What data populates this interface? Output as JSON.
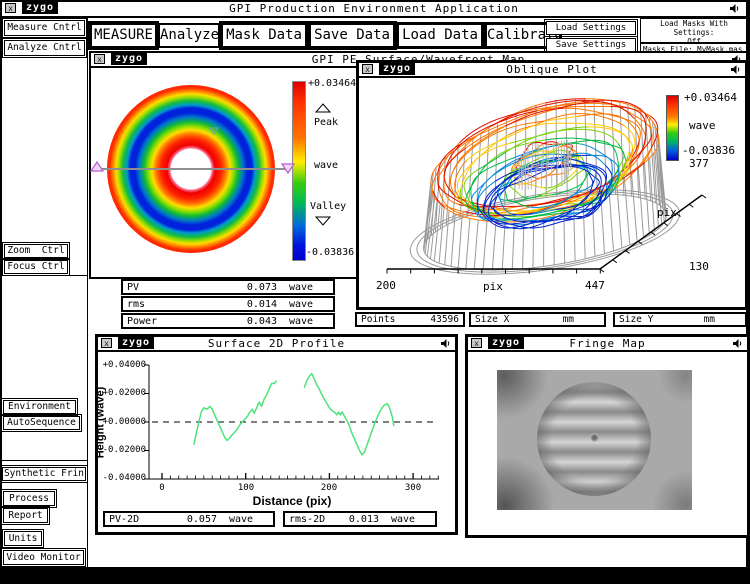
{
  "app": {
    "title": "GPI Production Environment Application",
    "logo": "zygo"
  },
  "sidebar": {
    "items": [
      {
        "label": "Measure Cntrl"
      },
      {
        "label": "Analyze Cntrl"
      },
      {
        "label": "Zoom  Ctrl"
      },
      {
        "label": "Focus Ctrl"
      },
      {
        "label": "Environment"
      },
      {
        "label": "AutoSequence"
      },
      {
        "label": "Synthetic Frin"
      },
      {
        "label": "Process"
      },
      {
        "label": "Report"
      },
      {
        "label": "Units"
      },
      {
        "label": "Video Monitor"
      }
    ]
  },
  "toolbar": {
    "buttons": [
      {
        "label": "MEASURE"
      },
      {
        "label": "Analyze"
      },
      {
        "label": "Mask Data"
      },
      {
        "label": "Save Data"
      },
      {
        "label": "Load Data"
      },
      {
        "label": "Calibrate"
      }
    ],
    "load_settings": "Load Settings",
    "save_settings": "Save Settings",
    "masks_line1": "Load Masks With Settings:",
    "masks_line2": "Off",
    "masks_file": "Masks File: MyMask.mas"
  },
  "surface_map": {
    "title": "GPI PE Surface/Wavefront Map",
    "colorbar": {
      "max": "+0.03464",
      "peak": "Peak",
      "unit": "wave",
      "valley": "Valley",
      "min": "-0.03836"
    },
    "results": [
      {
        "label": "PV",
        "value": "0.073",
        "unit": "wave"
      },
      {
        "label": "rms",
        "value": "0.014",
        "unit": "wave"
      },
      {
        "label": "Power",
        "value": "0.043",
        "unit": "wave"
      }
    ]
  },
  "oblique": {
    "title": "Oblique Plot",
    "colorbar": {
      "max": "+0.03464",
      "unit": "wave",
      "min": "-0.03836",
      "below": "377"
    },
    "x_axis": {
      "min": "200",
      "label": "pix",
      "max": "447"
    },
    "y_axis": {
      "label": "pix",
      "front": "130"
    },
    "info": [
      {
        "label": "Points",
        "value": "43596",
        "unit": ""
      },
      {
        "label": "Size X",
        "value": "",
        "unit": "mm"
      },
      {
        "label": "Size Y",
        "value": "",
        "unit": "mm"
      }
    ]
  },
  "profile": {
    "title": "Surface 2D Profile",
    "ylabel": "Height (wave)",
    "xlabel": "Distance (pix)",
    "yticks": [
      "+0.04000",
      "+0.02000",
      "+0.00000",
      "-0.02000",
      "-0.04000"
    ],
    "xticks": [
      "0",
      "100",
      "200",
      "300"
    ],
    "results": [
      {
        "label": "PV-2D",
        "value": "0.057",
        "unit": "wave"
      },
      {
        "label": "rms-2D",
        "value": "0.013",
        "unit": "wave"
      }
    ]
  },
  "fringe": {
    "title": "Fringe Map"
  },
  "chart_data": [
    {
      "type": "heatmap",
      "name": "surface_wavefront_map",
      "title": "GPI PE Surface/Wavefront Map",
      "units": "wave",
      "scale_max": 0.03464,
      "scale_min": -0.03836,
      "pv": 0.073,
      "rms": 0.014,
      "power": 0.043,
      "shape": "annulus with central hole, concentric height rings",
      "rings_center_to_edge": [
        "white-hole",
        "red",
        "orange",
        "yellow",
        "green",
        "blue",
        "green",
        "yellow",
        "orange",
        "red"
      ],
      "profile_line": {
        "orientation": "horizontal",
        "handle_color": "#b05fd0"
      }
    },
    {
      "type": "surface",
      "name": "oblique_plot",
      "title": "Oblique Plot",
      "x_range": [
        200,
        447
      ],
      "x_unit": "pix",
      "y_range": [
        130,
        377
      ],
      "y_unit": "pix",
      "z_range": [
        -0.03836,
        0.03464
      ],
      "z_unit": "wave",
      "points": 43596,
      "hole_radius_frac": 0.22,
      "radial_profile": {
        "t": [
          0,
          0.1,
          0.22,
          0.35,
          0.45,
          0.58,
          0.72,
          0.85,
          1.0
        ],
        "z": [
          0.032,
          0.012,
          -0.012,
          -0.03,
          -0.022,
          -0.004,
          0.016,
          0.028,
          0.022
        ]
      },
      "color_thresholds": [
        [
          0.026,
          "#e01000"
        ],
        [
          0.016,
          "#ff7700"
        ],
        [
          0.007,
          "#ffcc00"
        ],
        [
          -0.001,
          "#77d400"
        ],
        [
          -0.01,
          "#00bb44"
        ],
        [
          -0.02,
          "#0088dd"
        ],
        [
          -1,
          "#0022cc"
        ]
      ],
      "base_color": "#9a9a9a"
    },
    {
      "type": "line",
      "name": "surface_2d_profile",
      "title": "Surface 2D Profile",
      "xlabel": "Distance (pix)",
      "ylabel": "Height (wave)",
      "xlim": [
        0,
        330
      ],
      "ylim": [
        -0.04,
        0.04
      ],
      "zero_line_dashed": true,
      "color": "#4de37a",
      "pv_2d": 0.057,
      "rms_2d": 0.013,
      "segments": [
        [
          [
            38,
            -0.016
          ],
          [
            41,
            -0.008
          ],
          [
            44,
            0.0
          ],
          [
            47,
            0.007
          ],
          [
            50,
            0.01
          ],
          [
            54,
            0.009
          ],
          [
            57,
            0.011
          ],
          [
            60,
            0.009
          ],
          [
            63,
            0.005
          ],
          [
            66,
            0.001
          ],
          [
            69,
            -0.003
          ],
          [
            72,
            -0.007
          ],
          [
            75,
            -0.011
          ],
          [
            78,
            -0.013
          ],
          [
            81,
            -0.011
          ],
          [
            84,
            -0.009
          ],
          [
            87,
            -0.007
          ],
          [
            90,
            -0.005
          ],
          [
            93,
            -0.002
          ],
          [
            96,
            0.0
          ],
          [
            99,
            0.002
          ],
          [
            102,
            0.004
          ],
          [
            105,
            0.007
          ],
          [
            108,
            0.009
          ],
          [
            110,
            0.006
          ],
          [
            113,
            0.01
          ],
          [
            116,
            0.014
          ],
          [
            119,
            0.011
          ],
          [
            122,
            0.016
          ],
          [
            125,
            0.019
          ],
          [
            128,
            0.023
          ],
          [
            131,
            0.027
          ],
          [
            134,
            0.027
          ],
          [
            137,
            0.029
          ]
        ],
        [
          [
            170,
            0.024
          ],
          [
            173,
            0.029
          ],
          [
            176,
            0.032
          ],
          [
            179,
            0.034
          ],
          [
            182,
            0.03
          ],
          [
            185,
            0.026
          ],
          [
            188,
            0.023
          ],
          [
            191,
            0.019
          ],
          [
            194,
            0.016
          ],
          [
            197,
            0.013
          ],
          [
            200,
            0.01
          ],
          [
            203,
            0.008
          ],
          [
            206,
            0.007
          ],
          [
            209,
            0.005
          ],
          [
            211,
            0.007
          ],
          [
            213,
            0.005
          ],
          [
            215,
            0.007
          ],
          [
            218,
            0.004
          ],
          [
            221,
            0.001
          ],
          [
            224,
            -0.003
          ],
          [
            227,
            -0.008
          ],
          [
            230,
            -0.012
          ],
          [
            233,
            -0.016
          ],
          [
            236,
            -0.02
          ],
          [
            239,
            -0.023
          ],
          [
            242,
            -0.021
          ],
          [
            245,
            -0.016
          ],
          [
            248,
            -0.011
          ],
          [
            251,
            -0.006
          ],
          [
            254,
            -0.001
          ],
          [
            257,
            0.003
          ],
          [
            260,
            0.007
          ],
          [
            263,
            0.01
          ],
          [
            266,
            0.012
          ],
          [
            269,
            0.013
          ],
          [
            271,
            0.011
          ],
          [
            273,
            0.008
          ],
          [
            275,
            0.004
          ],
          [
            277,
            -0.003
          ]
        ]
      ]
    }
  ]
}
